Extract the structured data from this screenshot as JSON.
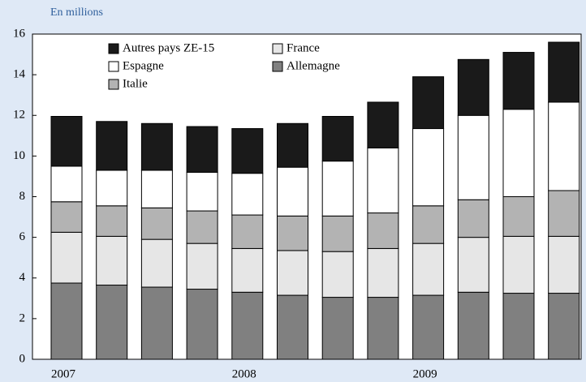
{
  "chart_data": {
    "type": "stacked_bar",
    "title": "En millions",
    "categories": [
      "2007",
      null,
      null,
      null,
      "2008",
      null,
      null,
      null,
      "2009",
      null,
      null,
      null
    ],
    "series": [
      {
        "name": "Allemagne",
        "color": "#808080",
        "values": [
          3.75,
          3.65,
          3.55,
          3.45,
          3.3,
          3.15,
          3.05,
          3.05,
          3.15,
          3.3,
          3.25,
          3.25
        ]
      },
      {
        "name": "France",
        "color": "#e6e6e6",
        "values": [
          2.5,
          2.4,
          2.35,
          2.25,
          2.15,
          2.2,
          2.25,
          2.4,
          2.55,
          2.7,
          2.8,
          2.8
        ]
      },
      {
        "name": "Italie",
        "color": "#b3b3b3",
        "values": [
          1.5,
          1.5,
          1.55,
          1.6,
          1.65,
          1.7,
          1.75,
          1.75,
          1.85,
          1.85,
          1.95,
          2.25
        ]
      },
      {
        "name": "Espagne",
        "color": "#ffffff",
        "values": [
          1.75,
          1.75,
          1.85,
          1.9,
          2.05,
          2.4,
          2.7,
          3.2,
          3.8,
          4.15,
          4.3,
          4.35
        ]
      },
      {
        "name": "Autres pays ZE-15",
        "color": "#1a1a1a",
        "values": [
          2.45,
          2.4,
          2.3,
          2.25,
          2.2,
          2.15,
          2.2,
          2.25,
          2.55,
          2.75,
          2.8,
          2.95
        ]
      }
    ],
    "ylim": [
      0,
      16
    ],
    "yticks": [
      0,
      2,
      4,
      6,
      8,
      10,
      12,
      14,
      16
    ]
  }
}
